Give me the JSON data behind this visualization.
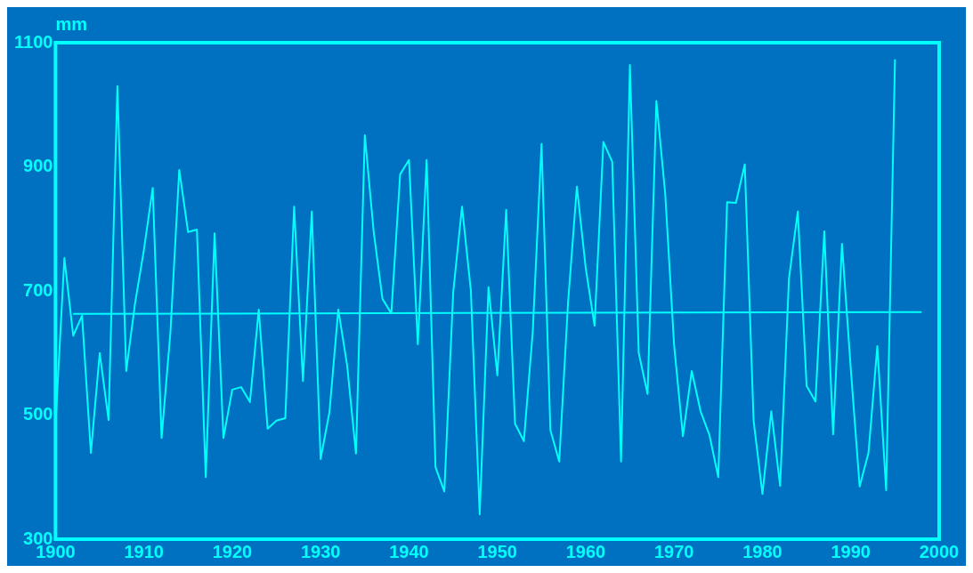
{
  "chart_data": {
    "type": "line",
    "ylabel": "mm",
    "xlim": [
      1900,
      2000
    ],
    "xticks": [
      1900,
      1910,
      1920,
      1930,
      1940,
      1950,
      1960,
      1970,
      1980,
      1990,
      2000
    ],
    "ylim": [
      300,
      1100
    ],
    "yticks": [
      300,
      500,
      700,
      900,
      1100
    ],
    "grid": false,
    "legend": false,
    "marker": "none",
    "line_style": "solid",
    "series": [
      {
        "color": "#00ffff",
        "x": [
          1900,
          1901,
          1902,
          1903,
          1904,
          1905,
          1906,
          1907,
          1908,
          1909,
          1910,
          1911,
          1912,
          1913,
          1914,
          1915,
          1916,
          1917,
          1918,
          1919,
          1920,
          1921,
          1922,
          1923,
          1924,
          1925,
          1926,
          1927,
          1928,
          1929,
          1930,
          1931,
          1932,
          1933,
          1934,
          1935,
          1936,
          1937,
          1938,
          1939,
          1940,
          1941,
          1942,
          1943,
          1944,
          1945,
          1946,
          1947,
          1948,
          1949,
          1950,
          1951,
          1952,
          1953,
          1954,
          1955,
          1956,
          1957,
          1958,
          1959,
          1960,
          1961,
          1962,
          1963,
          1964,
          1965,
          1966,
          1967,
          1968,
          1969,
          1970,
          1971,
          1972,
          1973,
          1974,
          1975,
          1976,
          1977,
          1978,
          1979,
          1980,
          1981,
          1982,
          1983,
          1984,
          1985,
          1986,
          1987,
          1988,
          1989,
          1990,
          1991,
          1992,
          1993,
          1994,
          1995
        ],
        "values": [
          486,
          753,
          628,
          660,
          439,
          600,
          492,
          1030,
          571,
          680,
          766,
          866,
          463,
          633,
          895,
          795,
          799,
          400,
          793,
          463,
          541,
          545,
          521,
          670,
          478,
          491,
          495,
          836,
          555,
          828,
          429,
          505,
          670,
          580,
          438,
          951,
          796,
          687,
          664,
          888,
          911,
          614,
          911,
          416,
          377,
          697,
          836,
          701,
          340,
          706,
          564,
          831,
          486,
          458,
          633,
          937,
          476,
          425,
          681,
          868,
          737,
          644,
          940,
          908,
          425,
          1064,
          600,
          534,
          1006,
          856,
          613,
          466,
          571,
          506,
          468,
          400,
          843,
          842,
          904,
          491,
          373,
          506,
          386,
          720,
          828,
          547,
          522,
          796,
          469,
          776,
          574,
          385,
          439,
          611,
          379,
          1073
        ]
      },
      {
        "color": "#00ffff",
        "x": [
          1902,
          1998
        ],
        "values": [
          663,
          666
        ]
      }
    ]
  }
}
